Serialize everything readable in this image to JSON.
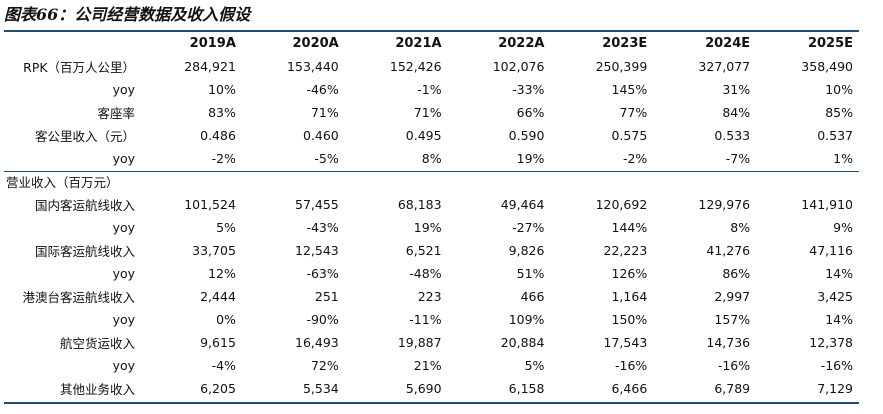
{
  "title": "图表66：公司经营数据及收入假设",
  "header": [
    "",
    "2019A",
    "2020A",
    "2021A",
    "2022A",
    "2023E",
    "2024E",
    "2025E"
  ],
  "rows_top": [
    {
      "label": "RPK（百万人公里）",
      "values": [
        "284,921",
        "153,440",
        "152,426",
        "102,076",
        "250,399",
        "327,077",
        "358,490"
      ]
    },
    {
      "label": "yoy",
      "values": [
        "10%",
        "-46%",
        "-1%",
        "-33%",
        "145%",
        "31%",
        "10%"
      ]
    },
    {
      "label": "客座率",
      "values": [
        "83%",
        "71%",
        "71%",
        "66%",
        "77%",
        "84%",
        "85%"
      ]
    },
    {
      "label": "客公里收入（元）",
      "values": [
        "0.486",
        "0.460",
        "0.495",
        "0.590",
        "0.575",
        "0.533",
        "0.537"
      ]
    },
    {
      "label": "yoy",
      "values": [
        "-2%",
        "-5%",
        "8%",
        "19%",
        "-2%",
        "-7%",
        "1%"
      ]
    }
  ],
  "section_label": "营业收入（百万元）",
  "rows_bottom": [
    {
      "label": "国内客运航线收入",
      "values": [
        "101,524",
        "57,455",
        "68,183",
        "49,464",
        "120,692",
        "129,976",
        "141,910"
      ]
    },
    {
      "label": "yoy",
      "values": [
        "5%",
        "-43%",
        "19%",
        "-27%",
        "144%",
        "8%",
        "9%"
      ]
    },
    {
      "label": "国际客运航线收入",
      "values": [
        "33,705",
        "12,543",
        "6,521",
        "9,826",
        "22,223",
        "41,276",
        "47,116"
      ]
    },
    {
      "label": "yoy",
      "values": [
        "12%",
        "-63%",
        "-48%",
        "51%",
        "126%",
        "86%",
        "14%"
      ]
    },
    {
      "label": "港澳台客运航线收入",
      "values": [
        "2,444",
        "251",
        "223",
        "466",
        "1,164",
        "2,997",
        "3,425"
      ]
    },
    {
      "label": "yoy",
      "values": [
        "0%",
        "-90%",
        "-11%",
        "109%",
        "150%",
        "157%",
        "14%"
      ]
    },
    {
      "label": "航空货运收入",
      "values": [
        "9,615",
        "16,493",
        "19,887",
        "20,884",
        "17,543",
        "14,736",
        "12,378"
      ]
    },
    {
      "label": "yoy",
      "values": [
        "-4%",
        "72%",
        "21%",
        "5%",
        "-16%",
        "-16%",
        "-16%"
      ]
    },
    {
      "label": "其他业务收入",
      "values": [
        "6,205",
        "5,534",
        "5,690",
        "6,158",
        "6,466",
        "6,789",
        "7,129"
      ]
    }
  ],
  "colors": {
    "rule": "#1f4e79",
    "text": "#111111"
  }
}
